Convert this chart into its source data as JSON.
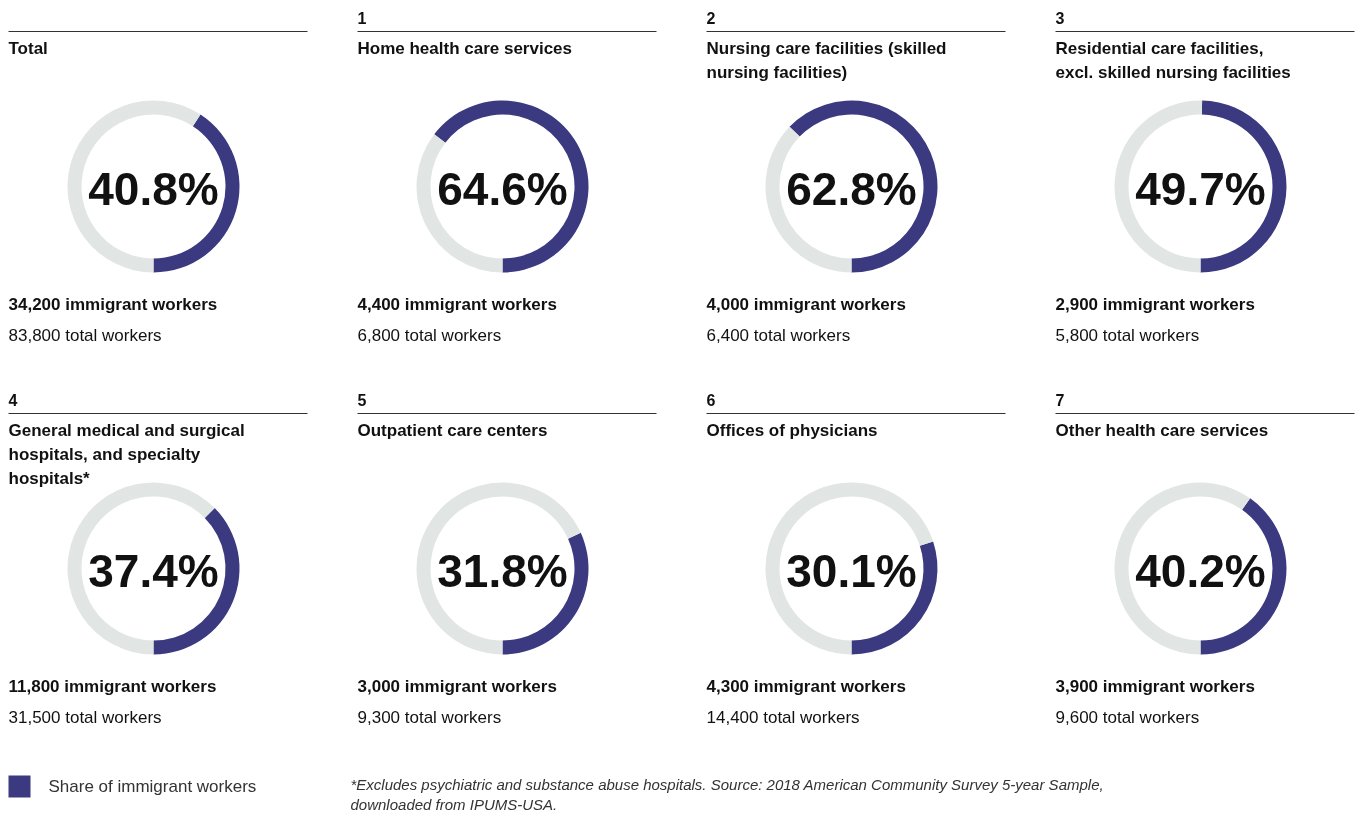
{
  "chart_data": [
    {
      "type": "donut",
      "title": "Total",
      "categories": [
        "Share of immigrant workers",
        null
      ],
      "values": [
        40.8,
        59.2
      ],
      "colors": [
        "#3b3a80",
        "#e1e5e4"
      ],
      "value_labels": [
        "40.8%",
        null
      ],
      "legend": "bottom left",
      "annotations": [
        "34,200 immigrant workers",
        "83,800 total workers"
      ]
    },
    {
      "type": "donut",
      "subtitle": "1",
      "title": "Home health care services",
      "categories": [
        null,
        null
      ],
      "values": [
        64.6,
        35.4
      ],
      "colors": [
        "#3b3a80",
        "#e1e5e4"
      ],
      "value_labels": [
        "64.6%",
        null
      ],
      "annotations": [
        "4,400 immigrant workers",
        "6,800 total workers"
      ]
    },
    {
      "type": "donut",
      "subtitle": "2",
      "title": "Nursing care facilities (skilled nursing facilities)",
      "categories": [
        null,
        null
      ],
      "values": [
        62.8,
        37.2
      ],
      "colors": [
        "#3b3a80",
        "#e1e5e4"
      ],
      "value_labels": [
        "62.8%",
        null
      ],
      "annotations": [
        "4,000 immigrant workers",
        "6,400 total workers"
      ]
    },
    {
      "type": "donut",
      "subtitle": "3",
      "title": "Residential care facilities, excl. skilled nursing facilities",
      "categories": [
        null,
        null
      ],
      "values": [
        49.7,
        50.3
      ],
      "colors": [
        "#3b3a80",
        "#e1e5e4"
      ],
      "value_labels": [
        "49.7%",
        null
      ],
      "annotations": [
        "2,900 immigrant workers",
        "5,800 total workers"
      ]
    },
    {
      "type": "donut",
      "subtitle": "4",
      "title": "General medical and surgical hospitals, and specialty hospitals*",
      "categories": [
        null,
        null
      ],
      "values": [
        37.4,
        62.6
      ],
      "colors": [
        "#3b3a80",
        "#e1e5e4"
      ],
      "value_labels": [
        "37.4%",
        null
      ],
      "annotations": [
        "11,800 immigrant workers",
        "31,500 total workers",
        "*Excludes psychiatric and substance abuse hospitals. Source: 2018 American Community Survey 5-year Sample, downloaded from IPUMS-USA."
      ]
    },
    {
      "type": "donut",
      "subtitle": "5",
      "title": "Outpatient care centers",
      "categories": [
        null,
        null
      ],
      "values": [
        31.8,
        68.2
      ],
      "colors": [
        "#3b3a80",
        "#e1e5e4"
      ],
      "value_labels": [
        "31.8%",
        null
      ],
      "annotations": [
        "3,000 immigrant workers",
        "9,300 total workers"
      ]
    },
    {
      "type": "donut",
      "subtitle": "6",
      "title": "Offices of physicians",
      "categories": [
        null,
        null
      ],
      "values": [
        30.1,
        69.9
      ],
      "colors": [
        "#3b3a80",
        "#e1e5e4"
      ],
      "value_labels": [
        "30.1%",
        null
      ],
      "annotations": [
        "4,300 immigrant workers",
        "14,400 total workers"
      ]
    },
    {
      "type": "donut",
      "subtitle": "7",
      "title": "Other health care services",
      "categories": [
        null,
        null
      ],
      "values": [
        40.2,
        59.8
      ],
      "colors": [
        "#3b3a80",
        "#e1e5e4"
      ],
      "value_labels": [
        "40.2%",
        null
      ],
      "annotations": [
        "3,900 immigrant workers",
        "9,600 total workers"
      ]
    }
  ]
}
